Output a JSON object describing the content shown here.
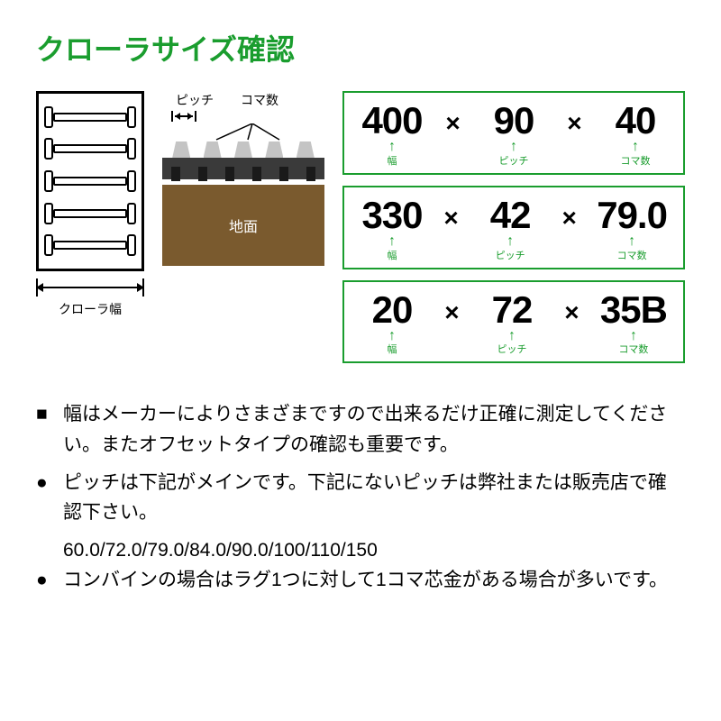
{
  "title": "クローラサイズ確認",
  "diagram": {
    "pitch_label": "ピッチ",
    "koma_label": "コマ数",
    "ground_label": "地面",
    "width_label": "クローラ幅",
    "colors": {
      "title_green": "#1a9d2e",
      "ground_brown": "#7a5a2e",
      "lug_gray": "#c4c4c4",
      "belt_dark": "#3a3a3a",
      "grouser_black": "#1a1a1a",
      "border_green": "#1a9d2e"
    }
  },
  "examples": [
    {
      "width": "400",
      "pitch": "90",
      "koma": "40"
    },
    {
      "width": "330",
      "pitch": "42",
      "koma": "79.0"
    },
    {
      "width": "20",
      "pitch": "72",
      "koma": "35B"
    }
  ],
  "labels": {
    "width": "幅",
    "pitch": "ピッチ",
    "koma": "コマ数",
    "mult": "×"
  },
  "notes": [
    {
      "bullet": "■",
      "text": "幅はメーカーによりさまざまですので出来るだけ正確に測定してください。またオフセットタイプの確認も重要です。"
    },
    {
      "bullet": "●",
      "text": "ピッチは下記がメインです。下記にないピッチは弊社または販売店で確認下さい。",
      "sub": "60.0/72.0/79.0/84.0/90.0/100/110/150"
    },
    {
      "bullet": "●",
      "text": "コンバインの場合はラグ1つに対して1コマ芯金がある場合が多いです。"
    }
  ]
}
